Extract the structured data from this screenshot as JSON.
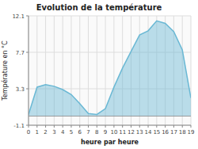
{
  "chart_data": {
    "type": "area",
    "title": "Evolution de la température",
    "x_label": "heure par heure",
    "y_label": "Température en °C",
    "x": [
      0,
      1,
      2,
      3,
      4,
      5,
      6,
      7,
      8,
      9,
      10,
      11,
      12,
      13,
      14,
      15,
      16,
      17,
      18,
      19
    ],
    "values": [
      0.2,
      3.5,
      3.8,
      3.6,
      3.2,
      2.6,
      1.5,
      0.3,
      0.2,
      0.9,
      3.5,
      5.8,
      7.8,
      9.8,
      10.3,
      11.5,
      11.2,
      10.2,
      8.0,
      2.2
    ],
    "color": "#6ab8d4",
    "xlim": [
      0,
      19
    ],
    "xticks": [
      0,
      1,
      2,
      3,
      4,
      5,
      6,
      7,
      8,
      9,
      10,
      11,
      12,
      13,
      14,
      15,
      16,
      17,
      18,
      19
    ],
    "ylim": [
      -1.1,
      12.1
    ],
    "yticks": [
      -1.1,
      3.3,
      7.7,
      12.1
    ],
    "grid": true
  }
}
